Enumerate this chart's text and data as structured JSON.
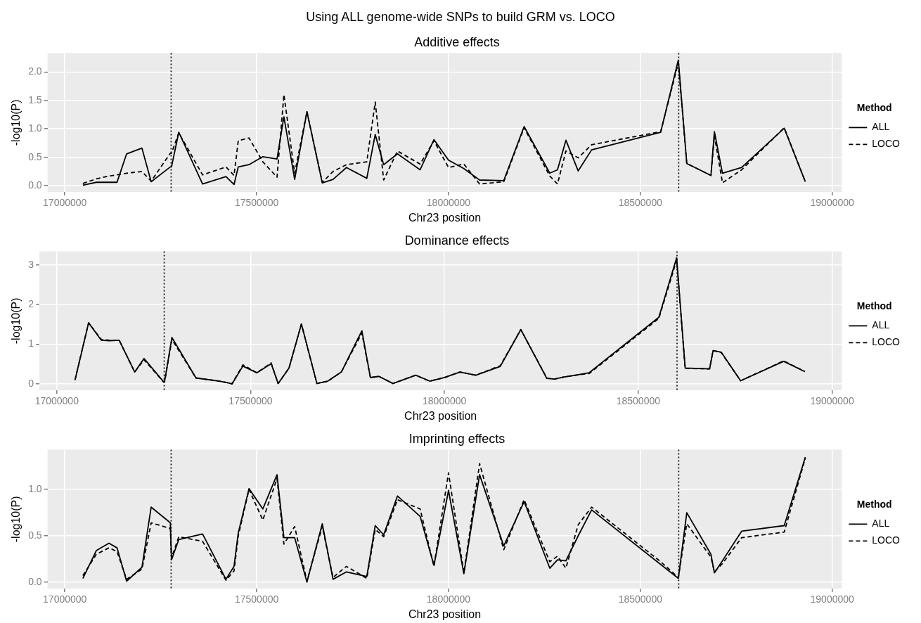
{
  "chart_data": [
    {
      "type": "line",
      "title": "Additive effects",
      "xlabel": "Chr23 position",
      "ylabel": "-log10(P)",
      "legend_title": "Method",
      "legend": "right",
      "grid": true,
      "marker": "none",
      "annotations": [
        "Using ALL genome-wide SNPs to build GRM vs. LOCO"
      ],
      "x": [
        17047000,
        17082000,
        17115000,
        17136000,
        17161000,
        17201000,
        17225000,
        17275000,
        17278000,
        17297000,
        17359000,
        17420000,
        17441000,
        17452000,
        17480000,
        17516000,
        17553000,
        17571000,
        17599000,
        17631000,
        17671000,
        17699000,
        17734000,
        17787000,
        17809000,
        17831000,
        17867000,
        17926000,
        17962000,
        18000000,
        18040000,
        18081000,
        18144000,
        18197000,
        18264000,
        18284000,
        18306000,
        18338000,
        18373000,
        18553000,
        18599000,
        18621000,
        18684000,
        18693000,
        18714000,
        18764000,
        18875000,
        18930000
      ],
      "xlim": [
        16955000,
        19025000
      ],
      "xticks": [
        17000000,
        17500000,
        18000000,
        18500000,
        19000000
      ],
      "ylim": [
        -0.11,
        2.33
      ],
      "yticks": [
        {
          "value": 0,
          "label": "0.0"
        },
        {
          "value": 0.5,
          "label": "0.5"
        },
        {
          "value": 1,
          "label": "1.0"
        },
        {
          "value": 1.5,
          "label": "1.5"
        },
        {
          "value": 2,
          "label": "2.0"
        }
      ],
      "ref_lines": [
        {
          "axis": "x",
          "value": 17277000,
          "color": "#000000",
          "line_style": "dotted"
        },
        {
          "axis": "x",
          "value": 18600000,
          "color": "#000000",
          "line_style": "dotted"
        }
      ],
      "series": [
        {
          "name": "ALL",
          "color": "#000000",
          "line_style": "solid",
          "values": [
            0.01,
            0.06,
            0.06,
            0.06,
            0.56,
            0.66,
            0.07,
            0.33,
            0.33,
            0.94,
            0.03,
            0.16,
            0.02,
            0.33,
            0.37,
            0.51,
            0.47,
            1.21,
            0.11,
            1.3,
            0.05,
            0.11,
            0.32,
            0.13,
            0.9,
            0.37,
            0.56,
            0.28,
            0.81,
            0.45,
            0.3,
            0.1,
            0.09,
            1.04,
            0.22,
            0.28,
            0.8,
            0.26,
            0.63,
            0.94,
            2.21,
            0.39,
            0.18,
            0.95,
            0.22,
            0.32,
            1.01,
            0.07
          ]
        },
        {
          "name": "LOCO",
          "color": "#000000",
          "line_style": "dashed",
          "values": [
            0.04,
            0.12,
            0.17,
            0.19,
            0.22,
            0.25,
            0.08,
            0.57,
            0.57,
            0.93,
            0.19,
            0.33,
            0.18,
            0.79,
            0.84,
            0.42,
            0.15,
            1.6,
            0.22,
            1.3,
            0.06,
            0.25,
            0.37,
            0.42,
            1.47,
            0.1,
            0.61,
            0.38,
            0.79,
            0.32,
            0.38,
            0.03,
            0.07,
            1.02,
            0.17,
            0.03,
            0.61,
            0.49,
            0.72,
            0.95,
            2.16,
            0.39,
            0.18,
            0.88,
            0.05,
            0.28,
            1.02,
            0.07
          ]
        }
      ]
    },
    {
      "type": "line",
      "title": "Dominance effects",
      "xlabel": "Chr23 position",
      "ylabel": "-log10(P)",
      "legend_title": "Method",
      "legend": "right",
      "grid": true,
      "marker": "none",
      "x": [
        17047000,
        17082000,
        17115000,
        17136000,
        17161000,
        17201000,
        17225000,
        17275000,
        17278000,
        17297000,
        17359000,
        17420000,
        17441000,
        17452000,
        17480000,
        17516000,
        17553000,
        17571000,
        17599000,
        17631000,
        17671000,
        17699000,
        17734000,
        17787000,
        17809000,
        17831000,
        17867000,
        17926000,
        17962000,
        18000000,
        18040000,
        18081000,
        18144000,
        18197000,
        18264000,
        18284000,
        18306000,
        18338000,
        18373000,
        18553000,
        18599000,
        18621000,
        18684000,
        18693000,
        18714000,
        18764000,
        18875000,
        18930000
      ],
      "xlim": [
        16955000,
        19025000
      ],
      "xticks": [
        17000000,
        17500000,
        18000000,
        18500000,
        19000000
      ],
      "ylim": [
        -0.16,
        3.34
      ],
      "yticks": [
        0,
        1,
        2,
        3
      ],
      "ref_lines": [
        {
          "axis": "x",
          "value": 17277000,
          "color": "#000000",
          "line_style": "dotted"
        },
        {
          "axis": "x",
          "value": 18600000,
          "color": "#000000",
          "line_style": "dotted"
        }
      ],
      "series": [
        {
          "name": "ALL",
          "color": "#000000",
          "line_style": "solid",
          "values": [
            0.1,
            1.54,
            1.1,
            1.09,
            1.1,
            0.3,
            0.64,
            0.06,
            0.06,
            1.17,
            0.15,
            0.07,
            0.03,
            0.0,
            0.45,
            0.28,
            0.51,
            0.01,
            0.4,
            1.51,
            0.01,
            0.07,
            0.3,
            1.34,
            0.16,
            0.19,
            0.01,
            0.22,
            0.07,
            0.16,
            0.3,
            0.22,
            0.44,
            1.37,
            0.14,
            0.12,
            0.17,
            0.22,
            0.28,
            1.68,
            3.18,
            0.4,
            0.38,
            0.84,
            0.8,
            0.08,
            0.57,
            0.31
          ]
        },
        {
          "name": "LOCO",
          "color": "#000000",
          "line_style": "dashed",
          "values": [
            0.1,
            1.54,
            1.12,
            1.1,
            1.1,
            0.3,
            0.61,
            0.05,
            0.05,
            1.12,
            0.15,
            0.07,
            0.03,
            0.0,
            0.48,
            0.28,
            0.53,
            0.01,
            0.4,
            1.51,
            0.01,
            0.07,
            0.3,
            1.28,
            0.16,
            0.19,
            0.01,
            0.22,
            0.07,
            0.16,
            0.3,
            0.22,
            0.46,
            1.37,
            0.15,
            0.12,
            0.17,
            0.22,
            0.26,
            1.65,
            3.12,
            0.39,
            0.38,
            0.84,
            0.79,
            0.08,
            0.58,
            0.31
          ]
        }
      ]
    },
    {
      "type": "line",
      "title": "Imprinting effects",
      "xlabel": "Chr23 position",
      "ylabel": "-log10(P)",
      "legend_title": "Method",
      "legend": "right",
      "grid": true,
      "marker": "none",
      "x": [
        17047000,
        17082000,
        17115000,
        17136000,
        17161000,
        17201000,
        17225000,
        17275000,
        17278000,
        17297000,
        17359000,
        17420000,
        17441000,
        17452000,
        17480000,
        17516000,
        17553000,
        17571000,
        17599000,
        17631000,
        17671000,
        17699000,
        17734000,
        17787000,
        17809000,
        17831000,
        17867000,
        17926000,
        17962000,
        18000000,
        18040000,
        18081000,
        18144000,
        18197000,
        18264000,
        18284000,
        18306000,
        18338000,
        18373000,
        18553000,
        18599000,
        18621000,
        18684000,
        18693000,
        18714000,
        18764000,
        18875000,
        18930000
      ],
      "xlim": [
        16955000,
        19025000
      ],
      "xticks": [
        17000000,
        17500000,
        18000000,
        18500000,
        19000000
      ],
      "ylim": [
        -0.07,
        1.43
      ],
      "yticks": [
        {
          "value": 0,
          "label": "0.0"
        },
        {
          "value": 0.5,
          "label": "0.5"
        },
        {
          "value": 1,
          "label": "1.0"
        }
      ],
      "ref_lines": [
        {
          "axis": "x",
          "value": 17277000,
          "color": "#000000",
          "line_style": "dotted"
        },
        {
          "axis": "x",
          "value": 18600000,
          "color": "#000000",
          "line_style": "dotted"
        }
      ],
      "series": [
        {
          "name": "ALL",
          "color": "#000000",
          "line_style": "solid",
          "values": [
            0.04,
            0.34,
            0.42,
            0.37,
            0.01,
            0.16,
            0.81,
            0.64,
            0.24,
            0.46,
            0.52,
            0.03,
            0.17,
            0.53,
            1.01,
            0.79,
            1.16,
            0.48,
            0.48,
            0.0,
            0.63,
            0.03,
            0.11,
            0.06,
            0.61,
            0.51,
            0.93,
            0.71,
            0.18,
            0.99,
            0.09,
            1.16,
            0.39,
            0.87,
            0.15,
            0.24,
            0.23,
            0.5,
            0.78,
            0.19,
            0.04,
            0.75,
            0.3,
            0.1,
            0.23,
            0.55,
            0.61,
            1.35
          ]
        },
        {
          "name": "LOCO",
          "color": "#000000",
          "line_style": "dashed",
          "values": [
            0.07,
            0.3,
            0.37,
            0.33,
            0.03,
            0.14,
            0.64,
            0.58,
            0.26,
            0.49,
            0.44,
            0.02,
            0.12,
            0.5,
            1.0,
            0.67,
            1.12,
            0.41,
            0.6,
            0.01,
            0.6,
            0.05,
            0.17,
            0.04,
            0.57,
            0.49,
            0.89,
            0.79,
            0.17,
            1.18,
            0.1,
            1.28,
            0.35,
            0.89,
            0.22,
            0.28,
            0.15,
            0.62,
            0.81,
            0.22,
            0.05,
            0.63,
            0.27,
            0.11,
            0.2,
            0.48,
            0.54,
            1.34
          ]
        }
      ]
    }
  ]
}
